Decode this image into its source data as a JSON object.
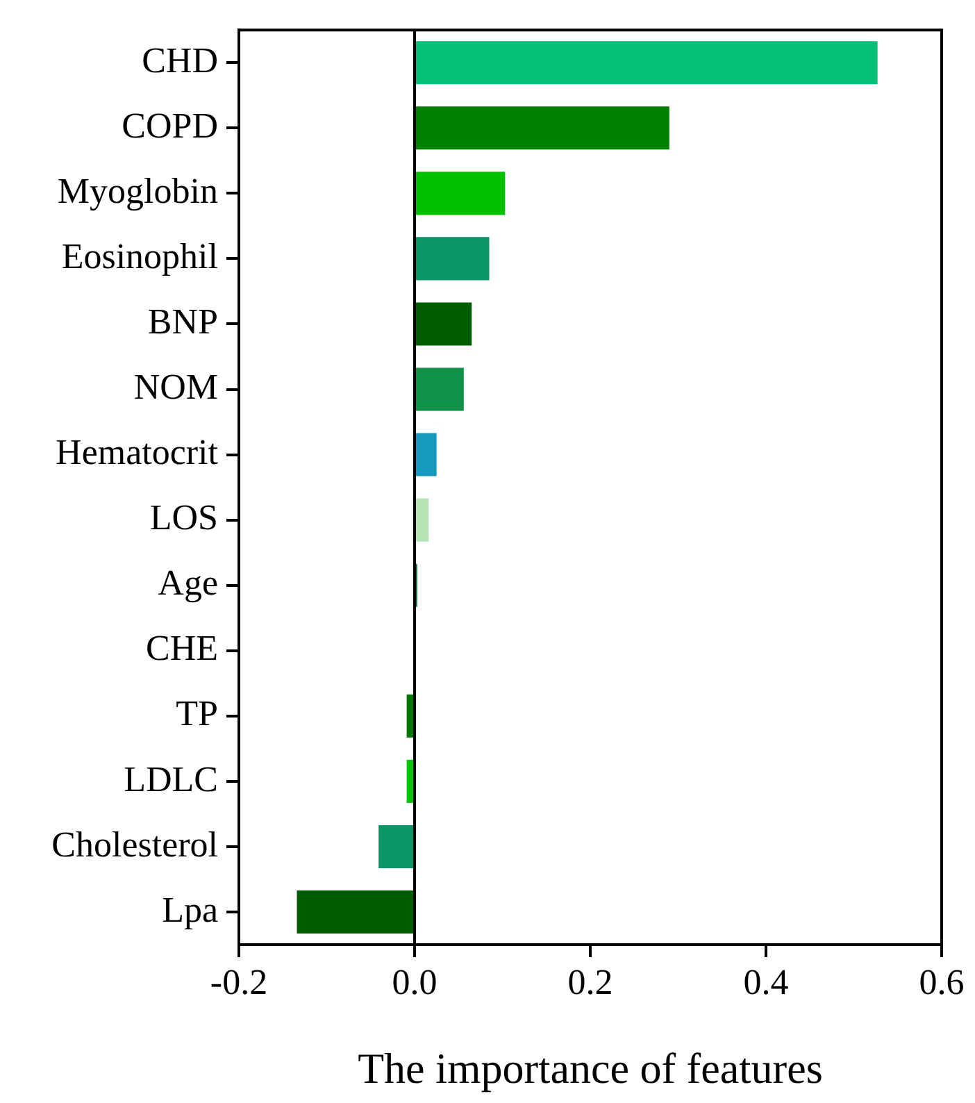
{
  "chart_data": {
    "type": "bar",
    "orientation": "horizontal",
    "xlabel": "The importance of features",
    "categories": [
      "CHD",
      "COPD",
      "Myoglobin",
      "Eosinophil",
      "BNP",
      "NOM",
      "Hematocrit",
      "LOS",
      "Age",
      "CHE",
      "TP",
      "LDLC",
      "Cholesterol",
      "Lpa"
    ],
    "values": [
      0.527,
      0.29,
      0.103,
      0.085,
      0.065,
      0.056,
      0.025,
      0.016,
      0.003,
      0,
      -0.009,
      -0.009,
      -0.041,
      -0.134
    ],
    "colors": [
      "#06c07a",
      "#008000",
      "#00c000",
      "#0a9669",
      "#005c00",
      "#0f9148",
      "#1599bd",
      "#b5e4b5",
      "#08704a",
      "#0a9669",
      "#007800",
      "#00c400",
      "#0a9669",
      "#005c00"
    ],
    "xlim": [
      -0.2,
      0.6
    ],
    "xticks": [
      {
        "value": -0.2,
        "label": "-0.2"
      },
      {
        "value": 0,
        "label": "0.0"
      },
      {
        "value": 0.2,
        "label": "0.2"
      },
      {
        "value": 0.4,
        "label": "0.4"
      },
      {
        "value": 0.6,
        "label": "0.6"
      }
    ],
    "ref_lines": [
      {
        "axis": "x",
        "value": 0,
        "color": "#000000"
      }
    ],
    "legend": false
  }
}
